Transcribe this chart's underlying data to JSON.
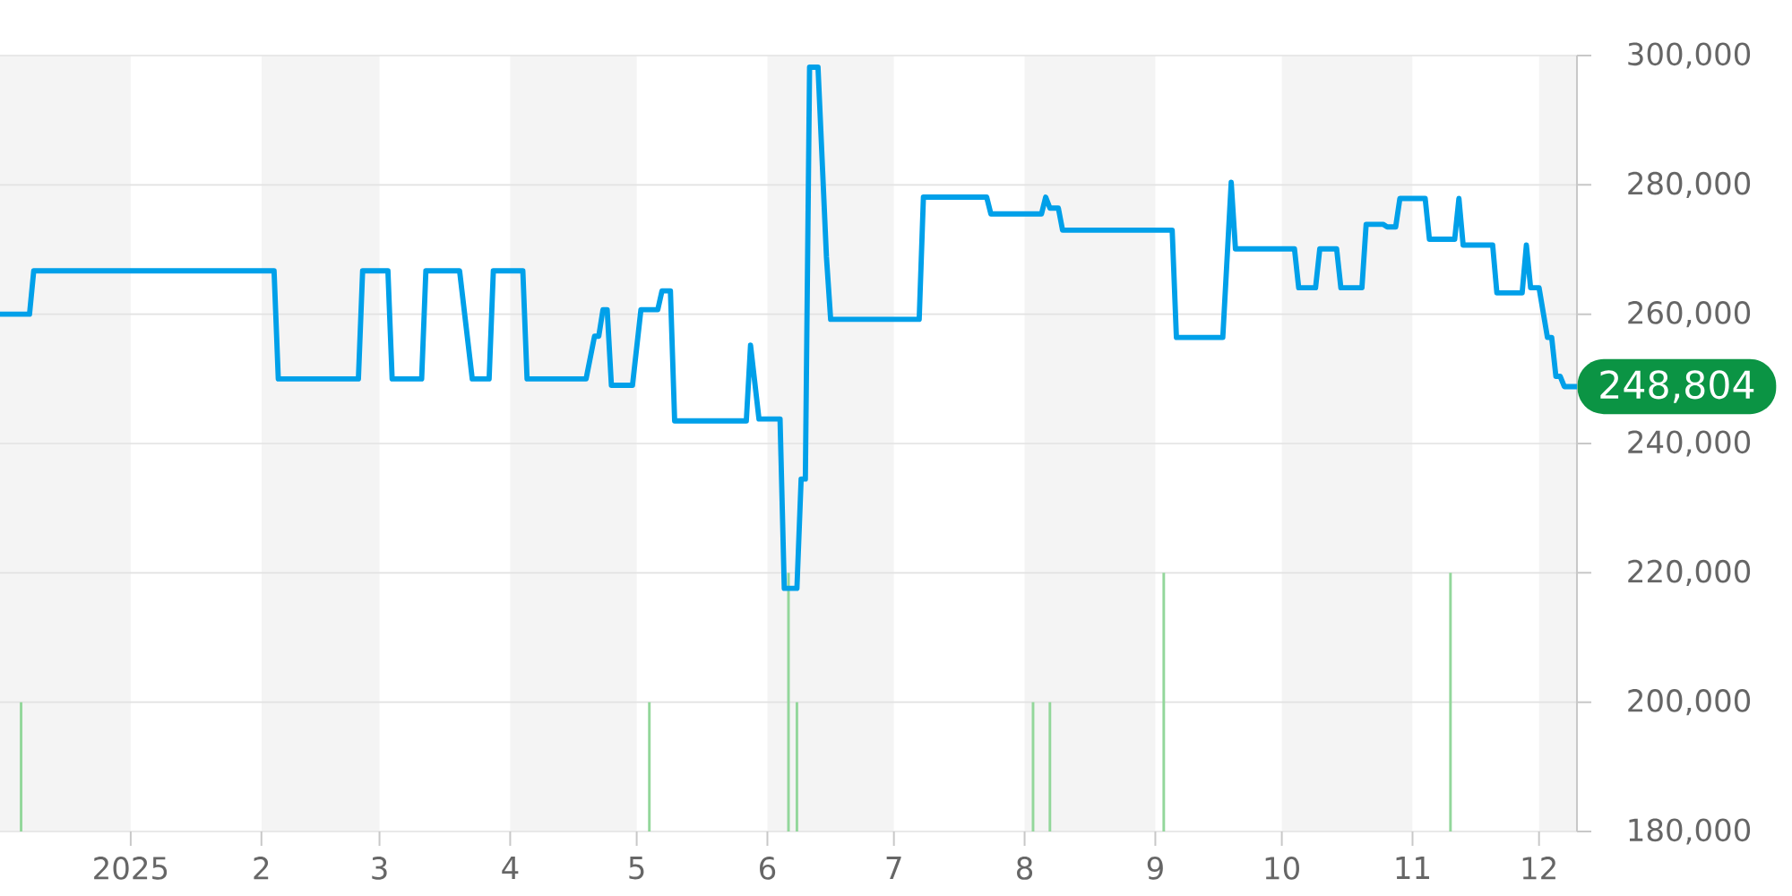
{
  "chart_data": {
    "type": "line",
    "xlim": [
      "2024-12-01",
      "2025-12-10"
    ],
    "xticks": [
      {
        "value": "2025-01-01",
        "label": "2025"
      },
      {
        "value": "2025-02-01",
        "label": "2"
      },
      {
        "value": "2025-03-01",
        "label": "3"
      },
      {
        "value": "2025-04-01",
        "label": "4"
      },
      {
        "value": "2025-05-01",
        "label": "5"
      },
      {
        "value": "2025-06-01",
        "label": "6"
      },
      {
        "value": "2025-07-01",
        "label": "7"
      },
      {
        "value": "2025-08-01",
        "label": "8"
      },
      {
        "value": "2025-09-01",
        "label": "9"
      },
      {
        "value": "2025-10-01",
        "label": "10"
      },
      {
        "value": "2025-11-01",
        "label": "11"
      },
      {
        "value": "2025-12-01",
        "label": "12"
      }
    ],
    "ylim": [
      180000,
      300000
    ],
    "yticks": [
      {
        "value": 180000,
        "label": "180,000"
      },
      {
        "value": 200000,
        "label": "200,000"
      },
      {
        "value": 220000,
        "label": "220,000"
      },
      {
        "value": 240000,
        "label": "240,000"
      },
      {
        "value": 260000,
        "label": "260,000"
      },
      {
        "value": 280000,
        "label": "280,000"
      },
      {
        "value": 300000,
        "label": "300,000"
      }
    ],
    "grid": "y",
    "bands": [
      {
        "axis": "x",
        "from": "2024-12-01",
        "to": "2025-01-01",
        "color": "#f4f4f4"
      },
      {
        "axis": "x",
        "from": "2025-02-01",
        "to": "2025-03-01",
        "color": "#f4f4f4"
      },
      {
        "axis": "x",
        "from": "2025-04-01",
        "to": "2025-05-01",
        "color": "#f4f4f4"
      },
      {
        "axis": "x",
        "from": "2025-06-01",
        "to": "2025-07-01",
        "color": "#f4f4f4"
      },
      {
        "axis": "x",
        "from": "2025-08-01",
        "to": "2025-09-01",
        "color": "#f4f4f4"
      },
      {
        "axis": "x",
        "from": "2025-10-01",
        "to": "2025-11-01",
        "color": "#f4f4f4"
      },
      {
        "axis": "x",
        "from": "2025-12-01",
        "to": "2025-12-10",
        "color": "#f4f4f4"
      }
    ],
    "annotations": [
      {
        "text": "248,804",
        "x": "2025-12-10",
        "y": 248804
      }
    ],
    "series": [
      {
        "type": "bar",
        "color": "#93d79b",
        "x": [
          "2024-12-06",
          "2025-05-04",
          "2025-06-06",
          "2025-06-08",
          "2025-08-03",
          "2025-08-07",
          "2025-09-03",
          "2025-11-10"
        ],
        "values": [
          200000,
          200000,
          220000,
          200000,
          200000,
          200000,
          220000,
          220000
        ]
      },
      {
        "color": "#00a0e9",
        "x": [
          "2024-12-01",
          "2024-12-08",
          "2024-12-09",
          "2025-02-04",
          "2025-02-05",
          "2025-02-24",
          "2025-02-25",
          "2025-03-03",
          "2025-03-04",
          "2025-03-11",
          "2025-03-12",
          "2025-03-20",
          "2025-03-23",
          "2025-03-27",
          "2025-03-28",
          "2025-04-04",
          "2025-04-05",
          "2025-04-19",
          "2025-04-21",
          "2025-04-22",
          "2025-04-23",
          "2025-04-24",
          "2025-04-25",
          "2025-04-30",
          "2025-05-02",
          "2025-05-06",
          "2025-05-07",
          "2025-05-09",
          "2025-05-10",
          "2025-05-27",
          "2025-05-28",
          "2025-05-30",
          "2025-06-04",
          "2025-06-05",
          "2025-06-08",
          "2025-06-09",
          "2025-06-10",
          "2025-06-11",
          "2025-06-13",
          "2025-06-15",
          "2025-06-16",
          "2025-07-07",
          "2025-07-08",
          "2025-07-23",
          "2025-07-24",
          "2025-08-05",
          "2025-08-06",
          "2025-08-07",
          "2025-08-09",
          "2025-08-10",
          "2025-09-05",
          "2025-09-06",
          "2025-09-17",
          "2025-09-19",
          "2025-09-20",
          "2025-10-04",
          "2025-10-05",
          "2025-10-09",
          "2025-10-10",
          "2025-10-14",
          "2025-10-15",
          "2025-10-20",
          "2025-10-21",
          "2025-10-25",
          "2025-10-26",
          "2025-10-28",
          "2025-10-29",
          "2025-11-04",
          "2025-11-05",
          "2025-11-11",
          "2025-11-12",
          "2025-11-13",
          "2025-11-20",
          "2025-11-21",
          "2025-11-27",
          "2025-11-28",
          "2025-11-29",
          "2025-12-01",
          "2025-12-03",
          "2025-12-04",
          "2025-12-05",
          "2025-12-06",
          "2025-12-07",
          "2025-12-10"
        ],
        "values": [
          260000,
          260000,
          266700,
          266700,
          250000,
          250000,
          266700,
          266700,
          250000,
          250000,
          266700,
          266700,
          250000,
          250000,
          266700,
          266700,
          250000,
          250000,
          256600,
          256600,
          260700,
          260700,
          249000,
          249000,
          260700,
          260700,
          263600,
          263600,
          243500,
          243500,
          255200,
          243800,
          243800,
          217600,
          217600,
          234500,
          234500,
          298200,
          298200,
          268900,
          259200,
          259200,
          278100,
          278100,
          275500,
          275500,
          278100,
          276400,
          276400,
          273000,
          273000,
          256400,
          256400,
          280400,
          270100,
          270100,
          264100,
          264100,
          270100,
          270100,
          264100,
          264100,
          273900,
          273900,
          273500,
          273500,
          277900,
          277900,
          271600,
          271600,
          277900,
          270700,
          270700,
          263300,
          263300,
          270700,
          264100,
          264100,
          256400,
          256400,
          250400,
          250400,
          248804,
          248804
        ]
      }
    ]
  }
}
